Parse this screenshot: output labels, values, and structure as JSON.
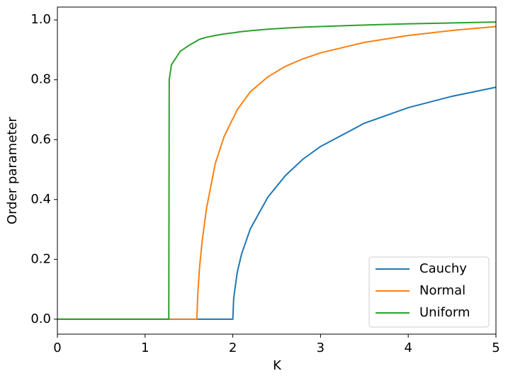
{
  "chart_data": {
    "type": "line",
    "xlabel": "K",
    "ylabel": "Order parameter",
    "x": [
      0,
      1,
      1.27,
      1.275,
      1.3,
      1.4,
      1.5,
      1.59,
      1.6,
      1.62,
      1.65,
      1.7,
      1.8,
      1.9,
      2.0,
      2.01,
      2.05,
      2.1,
      2.2,
      2.4,
      2.6,
      2.8,
      3.0,
      3.5,
      4.0,
      4.5,
      5.0
    ],
    "series": [
      {
        "name": "Cauchy",
        "color": "#1f77b4",
        "values": [
          0,
          0,
          0,
          0,
          0,
          0,
          0,
          0,
          0,
          0,
          0,
          0,
          0,
          0,
          0,
          0.07,
          0.156,
          0.218,
          0.302,
          0.408,
          0.48,
          0.535,
          0.577,
          0.655,
          0.707,
          0.745,
          0.775
        ]
      },
      {
        "name": "Normal",
        "color": "#ff7f0e",
        "values": [
          0,
          0,
          0,
          0,
          0,
          0,
          0,
          0,
          0.08,
          0.17,
          0.26,
          0.37,
          0.52,
          0.61,
          0.67,
          0.675,
          0.7,
          0.72,
          0.76,
          0.81,
          0.845,
          0.87,
          0.89,
          0.925,
          0.948,
          0.965,
          0.978
        ]
      },
      {
        "name": "Uniform",
        "color": "#2ca02c",
        "values": [
          0,
          0,
          0,
          0.8,
          0.85,
          0.895,
          0.915,
          0.93,
          0.932,
          0.935,
          0.938,
          0.942,
          0.948,
          0.953,
          0.957,
          0.957,
          0.959,
          0.961,
          0.964,
          0.969,
          0.973,
          0.976,
          0.978,
          0.983,
          0.987,
          0.99,
          0.993
        ]
      }
    ],
    "xlim": [
      0,
      5
    ],
    "xticks": [
      0,
      1,
      2,
      3,
      4,
      5
    ],
    "ylim": [
      -0.05,
      1.043
    ],
    "yticks": [
      {
        "value": 0,
        "label": "0.0"
      },
      0.2,
      0.4,
      0.6,
      0.8,
      {
        "value": 1,
        "label": "1.0"
      }
    ],
    "grid": false,
    "legend": "lower right"
  }
}
